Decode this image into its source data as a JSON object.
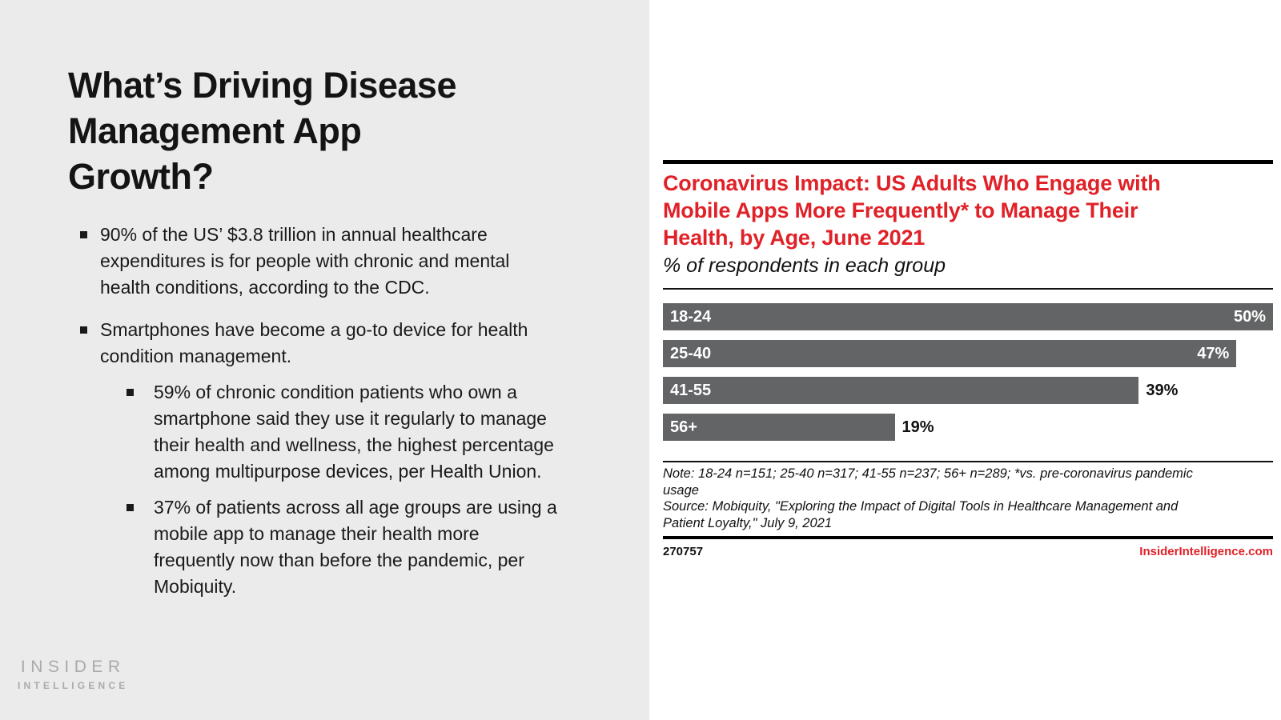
{
  "left_panel": {
    "title_lines": [
      "What’s Driving Disease",
      "Management App",
      "Growth?"
    ],
    "bullets": [
      {
        "level": 1,
        "text": "90% of the US’ $3.8 trillion in annual healthcare expenditures is for people with chronic and mental health conditions, according to the CDC."
      },
      {
        "level": 1,
        "text": "Smartphones have become a go-to device for health condition management."
      },
      {
        "level": 2,
        "text": "59% of chronic condition patients who own a smartphone said they use it regularly to manage their health and wellness, the highest percentage among multipurpose devices, per Health Union."
      },
      {
        "level": 2,
        "text": "37% of patients across all age groups are using a mobile app to manage their health more frequently now than before the pandemic, per Mobiquity."
      }
    ],
    "logo": {
      "line1": "INSIDER",
      "line2": "INTELLIGENCE"
    }
  },
  "chart": {
    "title_lines": [
      "Coronavirus Impact: US Adults Who Engage with",
      "Mobile Apps More Frequently* to Manage Their",
      "Health, by Age, June 2021"
    ],
    "subtitle": "% of respondents in each group",
    "note_lines": [
      "Note: 18-24 n=151; 25-40 n=317; 41-55 n=237; 56+ n=289; *vs. pre-coronavirus pandemic",
      "usage"
    ],
    "source_lines": [
      "Source: Mobiquity, \"Exploring the Impact of Digital Tools in Healthcare Management and",
      "Patient Loyalty,\" July 9, 2021"
    ],
    "chart_id": "270757",
    "website": "InsiderIntelligence.com"
  },
  "chart_data": {
    "type": "bar",
    "orientation": "horizontal",
    "title": "Coronavirus Impact: US Adults Who Engage with Mobile Apps More Frequently* to Manage Their Health, by Age, June 2021",
    "subtitle": "% of respondents in each group",
    "categories": [
      "18-24",
      "25-40",
      "41-55",
      "56+"
    ],
    "values": [
      50,
      47,
      39,
      19
    ],
    "value_labels": [
      "50%",
      "47%",
      "39%",
      "19%"
    ],
    "value_label_position": [
      "inside",
      "inside",
      "outside",
      "outside"
    ],
    "xlim": [
      0,
      50
    ],
    "grid": false,
    "legend": false,
    "bar_color": "#636466",
    "note": "Note: 18-24 n=151; 25-40 n=317; 41-55 n=237; 56+ n=289; *vs. pre-coronavirus pandemic usage",
    "source": "Source: Mobiquity, \"Exploring the Impact of Digital Tools in Healthcare Management and Patient Loyalty,\" July 9, 2021"
  },
  "colors": {
    "accent_red": "#e02128",
    "bar_gray": "#636466",
    "left_panel_bg": "#ebebeb",
    "logo_gray": "#a8aaad",
    "rule_black": "#000000"
  }
}
